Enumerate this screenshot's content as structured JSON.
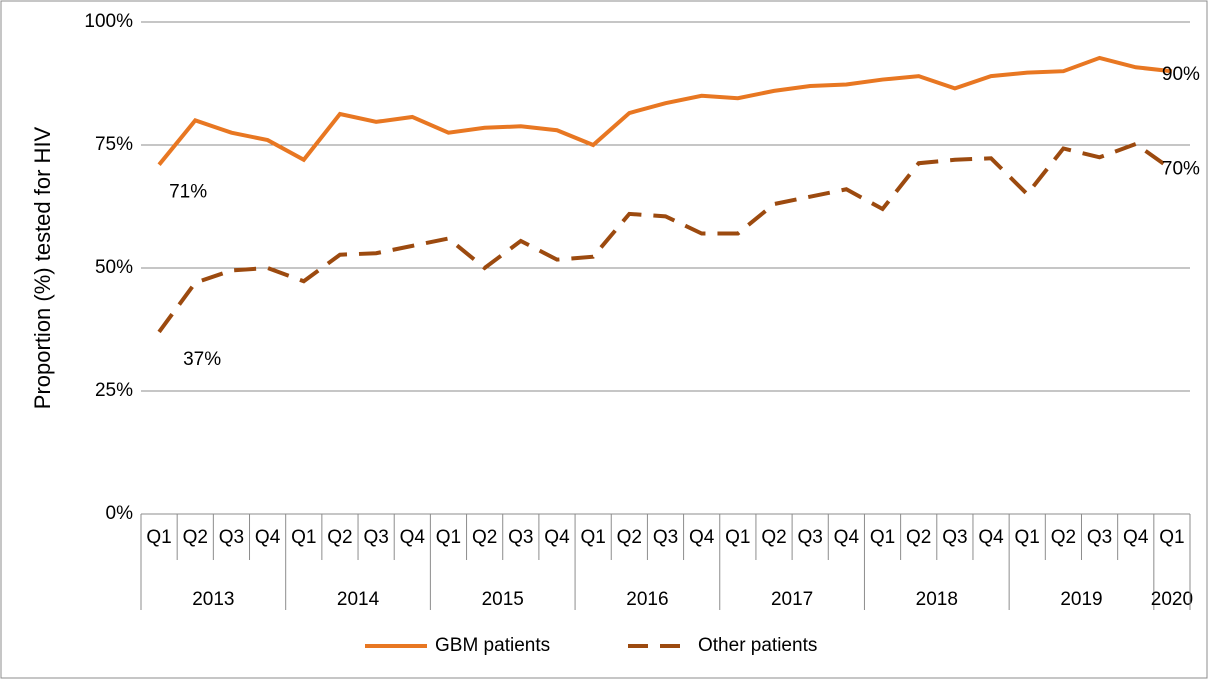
{
  "chart_data": {
    "type": "line",
    "y_label": "Proportion (%) tested for HIV",
    "categories": [
      "Q1",
      "Q2",
      "Q3",
      "Q4",
      "Q1",
      "Q2",
      "Q3",
      "Q4",
      "Q1",
      "Q2",
      "Q3",
      "Q4",
      "Q1",
      "Q2",
      "Q3",
      "Q4",
      "Q1",
      "Q2",
      "Q3",
      "Q4",
      "Q1",
      "Q2",
      "Q3",
      "Q4",
      "Q1",
      "Q2",
      "Q3",
      "Q4",
      "Q1"
    ],
    "year_groups": [
      {
        "label": "2013",
        "count": 4
      },
      {
        "label": "2014",
        "count": 4
      },
      {
        "label": "2015",
        "count": 4
      },
      {
        "label": "2016",
        "count": 4
      },
      {
        "label": "2017",
        "count": 4
      },
      {
        "label": "2018",
        "count": 4
      },
      {
        "label": "2019",
        "count": 4
      },
      {
        "label": "2020",
        "count": 1
      }
    ],
    "series": [
      {
        "name": "GBM patients",
        "color": "#e87722",
        "dashed": false,
        "values": [
          71,
          80,
          77.5,
          76,
          72,
          81.3,
          79.7,
          80.7,
          77.5,
          78.5,
          78.8,
          78,
          75,
          81.5,
          83.5,
          85,
          84.5,
          86,
          87,
          87.3,
          88.3,
          89,
          86.5,
          89,
          89.7,
          90,
          92.7,
          90.8,
          90
        ],
        "value_labels": [
          "71%",
          null,
          null,
          null,
          null,
          null,
          null,
          null,
          null,
          null,
          null,
          null,
          null,
          null,
          null,
          null,
          null,
          null,
          null,
          null,
          null,
          null,
          null,
          null,
          null,
          null,
          null,
          null,
          "90%"
        ]
      },
      {
        "name": "Other patients",
        "color": "#9c4a0f",
        "dashed": true,
        "values": [
          37,
          47,
          49.5,
          50,
          47.3,
          52.7,
          53,
          54.5,
          56,
          50,
          55.5,
          51.7,
          52.3,
          61,
          60.5,
          57,
          57,
          63,
          64.5,
          66,
          62,
          71.3,
          72,
          72.3,
          65,
          74.3,
          72.5,
          75.2,
          70
        ],
        "value_labels": [
          "37%",
          null,
          null,
          null,
          null,
          null,
          null,
          null,
          null,
          null,
          null,
          null,
          null,
          null,
          null,
          null,
          null,
          null,
          null,
          null,
          null,
          null,
          null,
          null,
          null,
          null,
          null,
          null,
          "70%"
        ]
      }
    ],
    "ylim": [
      0,
      100
    ],
    "yticks": [
      {
        "value": 0,
        "label": "0%"
      },
      {
        "value": 25,
        "label": "25%"
      },
      {
        "value": 50,
        "label": "50%"
      },
      {
        "value": 75,
        "label": "75%"
      },
      {
        "value": 100,
        "label": "100%"
      }
    ],
    "grid": true,
    "legend": "bottom"
  }
}
